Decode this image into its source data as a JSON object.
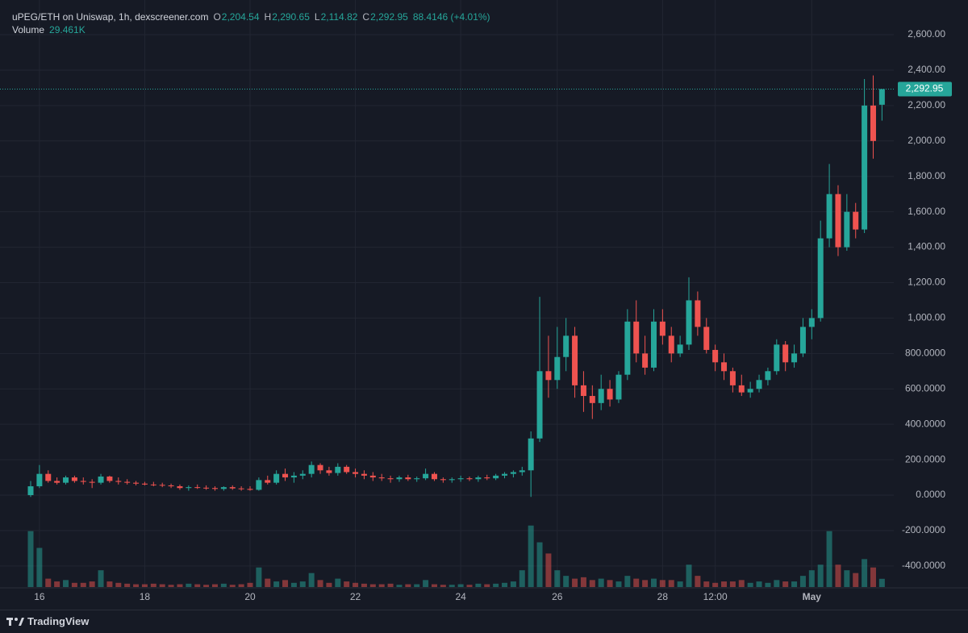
{
  "chart_data": {
    "type": "candlestick",
    "legend": {
      "symbol": "uPEG/ETH on Uniswap, 1h, dexscreener.com",
      "ohlc_keys": [
        "O",
        "H",
        "L",
        "C"
      ],
      "ohlc_labels": [
        "2,204.54",
        "2,290.65",
        "2,114.82",
        "2,292.95"
      ],
      "change_label": "88.4146 (+4.01%)",
      "volume_name": "Volume",
      "volume_label": "29.461K"
    },
    "last_price_label": "2,292.95",
    "up_color": "#26a69a",
    "down_color": "#ef5350",
    "grid": true,
    "categories": [
      null,
      "16",
      null,
      null,
      null,
      null,
      null,
      null,
      null,
      null,
      null,
      null,
      null,
      "18",
      null,
      null,
      null,
      null,
      null,
      null,
      null,
      null,
      null,
      null,
      null,
      "20",
      null,
      null,
      null,
      null,
      null,
      null,
      null,
      null,
      null,
      null,
      null,
      "22",
      null,
      null,
      null,
      null,
      null,
      null,
      null,
      null,
      null,
      null,
      null,
      "24",
      null,
      null,
      null,
      null,
      null,
      null,
      null,
      null,
      null,
      null,
      "26",
      null,
      null,
      null,
      null,
      null,
      null,
      null,
      null,
      null,
      null,
      null,
      "28",
      null,
      null,
      null,
      null,
      null,
      "12:00",
      null,
      null,
      null,
      null,
      null,
      null,
      null,
      null,
      null,
      null,
      "May",
      null,
      null,
      null,
      null,
      null,
      null,
      null,
      null
    ],
    "open": [
      0,
      50,
      120,
      80,
      70,
      100,
      80,
      75,
      70,
      105,
      80,
      75,
      70,
      65,
      60,
      58,
      55,
      50,
      40,
      45,
      42,
      40,
      35,
      45,
      38,
      35,
      30,
      85,
      70,
      120,
      100,
      110,
      120,
      170,
      140,
      125,
      160,
      130,
      120,
      110,
      100,
      95,
      90,
      100,
      90,
      95,
      120,
      90,
      85,
      90,
      95,
      90,
      100,
      95,
      110,
      120,
      130,
      140,
      320,
      700,
      650,
      780,
      900,
      620,
      560,
      520,
      600,
      540,
      680,
      980,
      800,
      720,
      980,
      900,
      800,
      850,
      1100,
      950,
      820,
      750,
      700,
      620,
      580,
      600,
      650,
      700,
      850,
      750,
      800,
      950,
      1000,
      1450,
      1700,
      1400,
      1600,
      1500,
      2200,
      2204.54
    ],
    "high": [
      80,
      170,
      140,
      100,
      110,
      110,
      100,
      90,
      120,
      110,
      100,
      90,
      80,
      75,
      75,
      70,
      65,
      60,
      55,
      60,
      55,
      50,
      50,
      55,
      50,
      50,
      100,
      110,
      140,
      150,
      130,
      140,
      190,
      180,
      160,
      180,
      170,
      150,
      140,
      130,
      120,
      110,
      110,
      115,
      105,
      150,
      130,
      100,
      100,
      110,
      105,
      110,
      115,
      120,
      130,
      140,
      160,
      360,
      1120,
      900,
      950,
      1000,
      950,
      700,
      620,
      680,
      650,
      700,
      1050,
      1100,
      900,
      1050,
      1050,
      950,
      900,
      1230,
      1150,
      1000,
      850,
      800,
      720,
      680,
      640,
      680,
      720,
      880,
      870,
      850,
      1000,
      1050,
      1550,
      1870,
      1750,
      1700,
      1650,
      2350,
      2370,
      2290.65
    ],
    "low": [
      -10,
      40,
      70,
      60,
      60,
      70,
      60,
      40,
      60,
      70,
      60,
      60,
      55,
      55,
      50,
      45,
      40,
      30,
      25,
      35,
      30,
      25,
      25,
      30,
      25,
      25,
      25,
      60,
      60,
      80,
      70,
      90,
      100,
      120,
      110,
      110,
      120,
      100,
      90,
      80,
      80,
      70,
      75,
      80,
      75,
      85,
      80,
      70,
      70,
      75,
      80,
      75,
      85,
      85,
      95,
      100,
      110,
      -10,
      300,
      550,
      600,
      700,
      550,
      470,
      430,
      480,
      500,
      520,
      650,
      750,
      680,
      700,
      850,
      750,
      780,
      820,
      900,
      800,
      700,
      650,
      580,
      560,
      550,
      580,
      620,
      680,
      700,
      720,
      780,
      880,
      980,
      1400,
      1350,
      1380,
      1450,
      1480,
      1900,
      2114.82
    ],
    "close": [
      50,
      120,
      80,
      70,
      100,
      80,
      75,
      70,
      105,
      80,
      75,
      70,
      65,
      60,
      58,
      55,
      50,
      40,
      45,
      42,
      40,
      35,
      45,
      38,
      35,
      30,
      85,
      70,
      120,
      100,
      110,
      120,
      170,
      140,
      125,
      160,
      130,
      120,
      110,
      100,
      95,
      90,
      100,
      90,
      95,
      120,
      90,
      85,
      90,
      95,
      90,
      100,
      95,
      110,
      120,
      130,
      140,
      320,
      700,
      650,
      780,
      900,
      620,
      560,
      520,
      600,
      540,
      680,
      980,
      800,
      720,
      980,
      900,
      800,
      850,
      1100,
      950,
      820,
      750,
      700,
      620,
      580,
      600,
      650,
      700,
      850,
      750,
      800,
      950,
      1000,
      1450,
      1700,
      1400,
      1600,
      1500,
      2200,
      2000,
      2292.95
    ],
    "volume": [
      200000,
      140000,
      30000,
      20000,
      25000,
      15000,
      15000,
      20000,
      60000,
      20000,
      15000,
      12000,
      10000,
      10000,
      12000,
      10000,
      8000,
      10000,
      12000,
      10000,
      8000,
      10000,
      12000,
      8000,
      10000,
      15000,
      70000,
      30000,
      20000,
      25000,
      15000,
      20000,
      50000,
      25000,
      15000,
      30000,
      20000,
      15000,
      12000,
      10000,
      10000,
      12000,
      8000,
      10000,
      10000,
      25000,
      10000,
      8000,
      8000,
      10000,
      8000,
      12000,
      10000,
      12000,
      15000,
      20000,
      60000,
      220000,
      160000,
      120000,
      60000,
      40000,
      30000,
      35000,
      25000,
      30000,
      25000,
      20000,
      40000,
      30000,
      25000,
      30000,
      25000,
      25000,
      20000,
      80000,
      40000,
      20000,
      15000,
      20000,
      20000,
      25000,
      15000,
      20000,
      15000,
      25000,
      20000,
      20000,
      40000,
      60000,
      80000,
      200000,
      80000,
      60000,
      50000,
      100000,
      70000,
      29461
    ],
    "ylim": [
      -519,
      2796
    ],
    "y2lim": [
      0,
      2100000
    ],
    "yticks": [
      {
        "value": 2600,
        "label": "2,600.00"
      },
      {
        "value": 2400,
        "label": "2,400.00"
      },
      {
        "value": 2200,
        "label": "2,200.00"
      },
      {
        "value": 2000,
        "label": "2,000.00"
      },
      {
        "value": 1800,
        "label": "1,800.00"
      },
      {
        "value": 1600,
        "label": "1,600.00"
      },
      {
        "value": 1400,
        "label": "1,400.00"
      },
      {
        "value": 1200,
        "label": "1,200.00"
      },
      {
        "value": 1000,
        "label": "1,000.00"
      },
      {
        "value": 800,
        "label": "800.0000"
      },
      {
        "value": 600,
        "label": "600.0000"
      },
      {
        "value": 400,
        "label": "400.0000"
      },
      {
        "value": 200,
        "label": "200.0000"
      },
      {
        "value": 0,
        "label": "0.0000"
      },
      {
        "value": -200,
        "label": "-200.0000"
      },
      {
        "value": -400,
        "label": "-400.0000"
      }
    ]
  },
  "footer": {
    "brand": "TradingView"
  }
}
